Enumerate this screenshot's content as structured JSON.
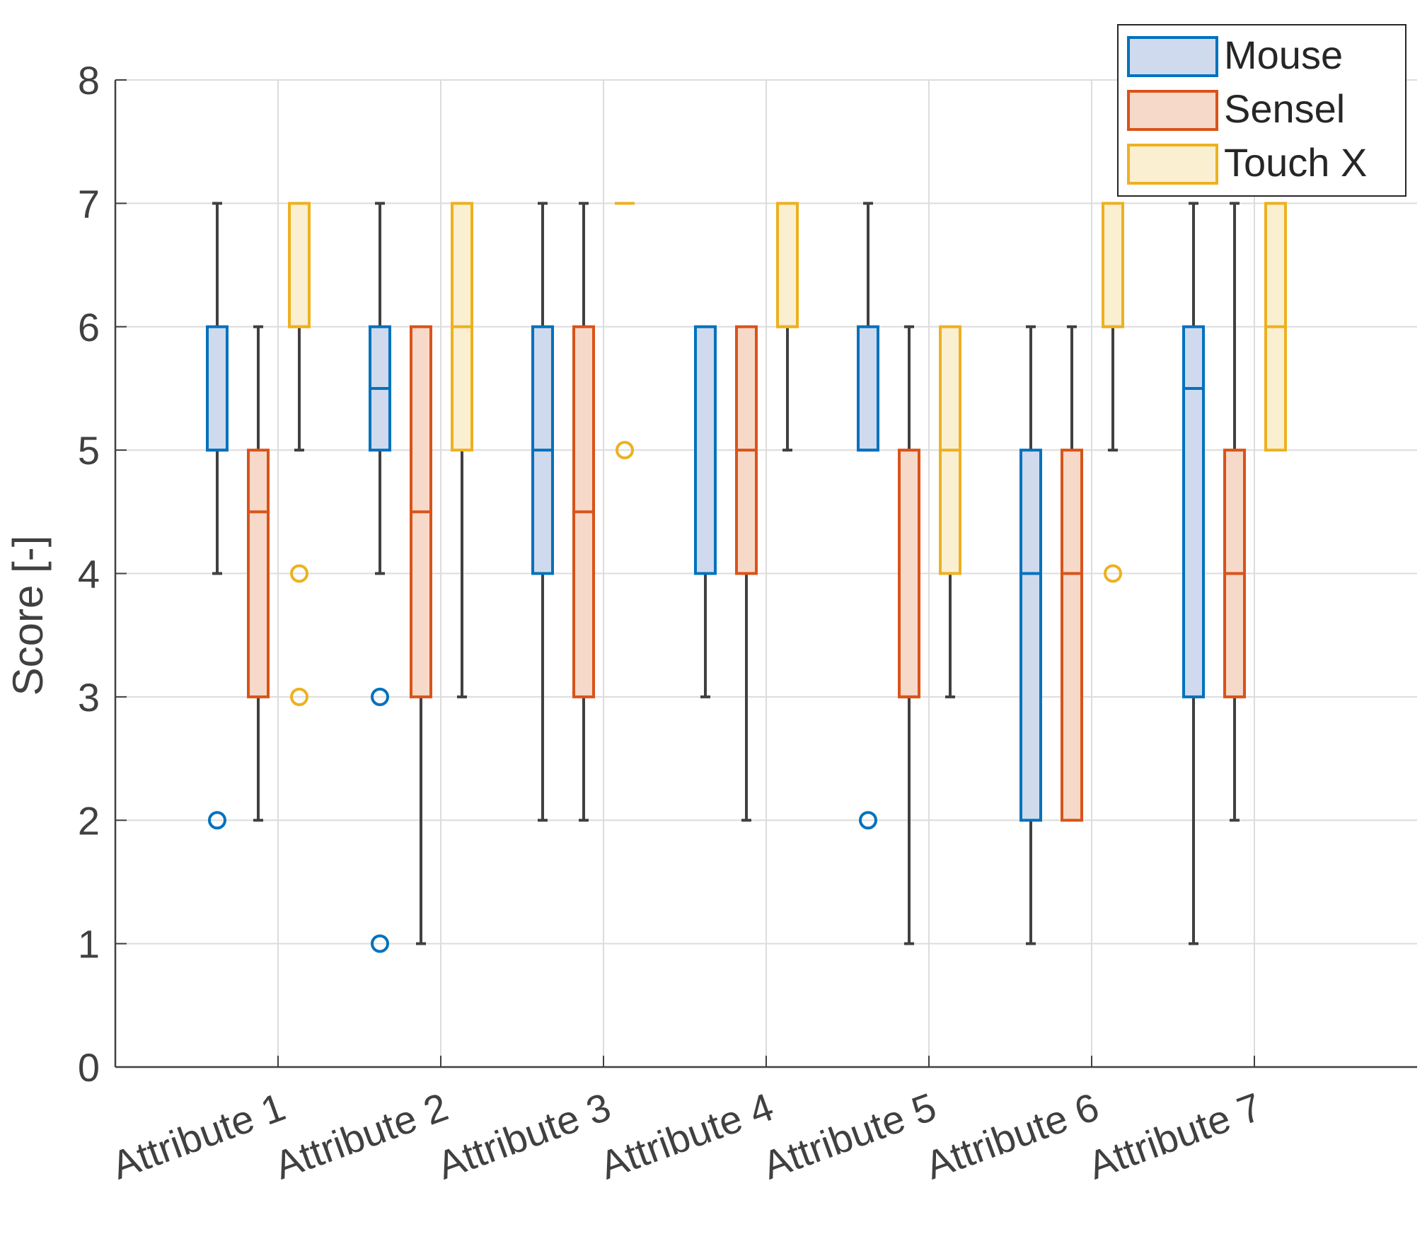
{
  "chart_data": {
    "type": "boxplot",
    "title": "",
    "xlabel": "",
    "ylabel": "Score [-]",
    "ylim": [
      0,
      8
    ],
    "yticks": [
      0,
      1,
      2,
      3,
      4,
      5,
      6,
      7,
      8
    ],
    "grid": true,
    "legend_position": "top-right",
    "categories": [
      "Attribute 1",
      "Attribute 2",
      "Attribute 3",
      "Attribute 4",
      "Attribute 5",
      "Attribute 6",
      "Attribute 7"
    ],
    "series": [
      {
        "name": "Mouse",
        "stroke": "#0072BD",
        "fill": "#CFDAEE",
        "boxes": [
          {
            "whisker_low": 4,
            "q1": 5,
            "median": 5,
            "q3": 6,
            "whisker_high": 7,
            "outliers": [
              2
            ]
          },
          {
            "whisker_low": 4,
            "q1": 5,
            "median": 5.5,
            "q3": 6,
            "whisker_high": 7,
            "outliers": [
              3,
              1
            ]
          },
          {
            "whisker_low": 2,
            "q1": 4,
            "median": 5,
            "q3": 6,
            "whisker_high": 7,
            "outliers": []
          },
          {
            "whisker_low": 3,
            "q1": 4,
            "median": 4,
            "q3": 6,
            "whisker_high": 6,
            "outliers": []
          },
          {
            "whisker_low": 5,
            "q1": 5,
            "median": 5,
            "q3": 6,
            "whisker_high": 7,
            "outliers": [
              2
            ]
          },
          {
            "whisker_low": 1,
            "q1": 2,
            "median": 4,
            "q3": 5,
            "whisker_high": 6,
            "outliers": []
          },
          {
            "whisker_low": 1,
            "q1": 3,
            "median": 5.5,
            "q3": 6,
            "whisker_high": 7,
            "outliers": []
          }
        ]
      },
      {
        "name": "Sensel",
        "stroke": "#D95319",
        "fill": "#F7D9C9",
        "boxes": [
          {
            "whisker_low": 2,
            "q1": 3,
            "median": 4.5,
            "q3": 5,
            "whisker_high": 6,
            "outliers": []
          },
          {
            "whisker_low": 1,
            "q1": 3,
            "median": 4.5,
            "q3": 6,
            "whisker_high": 6,
            "outliers": []
          },
          {
            "whisker_low": 2,
            "q1": 3,
            "median": 4.5,
            "q3": 6,
            "whisker_high": 7,
            "outliers": []
          },
          {
            "whisker_low": 2,
            "q1": 4,
            "median": 5,
            "q3": 6,
            "whisker_high": 6,
            "outliers": []
          },
          {
            "whisker_low": 1,
            "q1": 3,
            "median": 3,
            "q3": 5,
            "whisker_high": 6,
            "outliers": []
          },
          {
            "whisker_low": 2,
            "q1": 2,
            "median": 4,
            "q3": 5,
            "whisker_high": 6,
            "outliers": []
          },
          {
            "whisker_low": 2,
            "q1": 3,
            "median": 4,
            "q3": 5,
            "whisker_high": 7,
            "outliers": []
          }
        ]
      },
      {
        "name": "Touch X",
        "stroke": "#EDB120",
        "fill": "#FBEFD1",
        "boxes": [
          {
            "whisker_low": 5,
            "q1": 6,
            "median": 6,
            "q3": 7,
            "whisker_high": 7,
            "outliers": [
              4,
              3
            ]
          },
          {
            "whisker_low": 3,
            "q1": 5,
            "median": 6,
            "q3": 7,
            "whisker_high": 7,
            "outliers": []
          },
          {
            "whisker_low": 7,
            "q1": 7,
            "median": 7,
            "q3": 7,
            "whisker_high": 7,
            "outliers": [
              5
            ]
          },
          {
            "whisker_low": 5,
            "q1": 6,
            "median": 6,
            "q3": 7,
            "whisker_high": 7,
            "outliers": []
          },
          {
            "whisker_low": 3,
            "q1": 4,
            "median": 5,
            "q3": 6,
            "whisker_high": 6,
            "outliers": []
          },
          {
            "whisker_low": 5,
            "q1": 6,
            "median": 6,
            "q3": 7,
            "whisker_high": 7,
            "outliers": [
              4
            ]
          },
          {
            "whisker_low": 5,
            "q1": 5,
            "median": 6,
            "q3": 7,
            "whisker_high": 7,
            "outliers": []
          }
        ]
      }
    ]
  }
}
